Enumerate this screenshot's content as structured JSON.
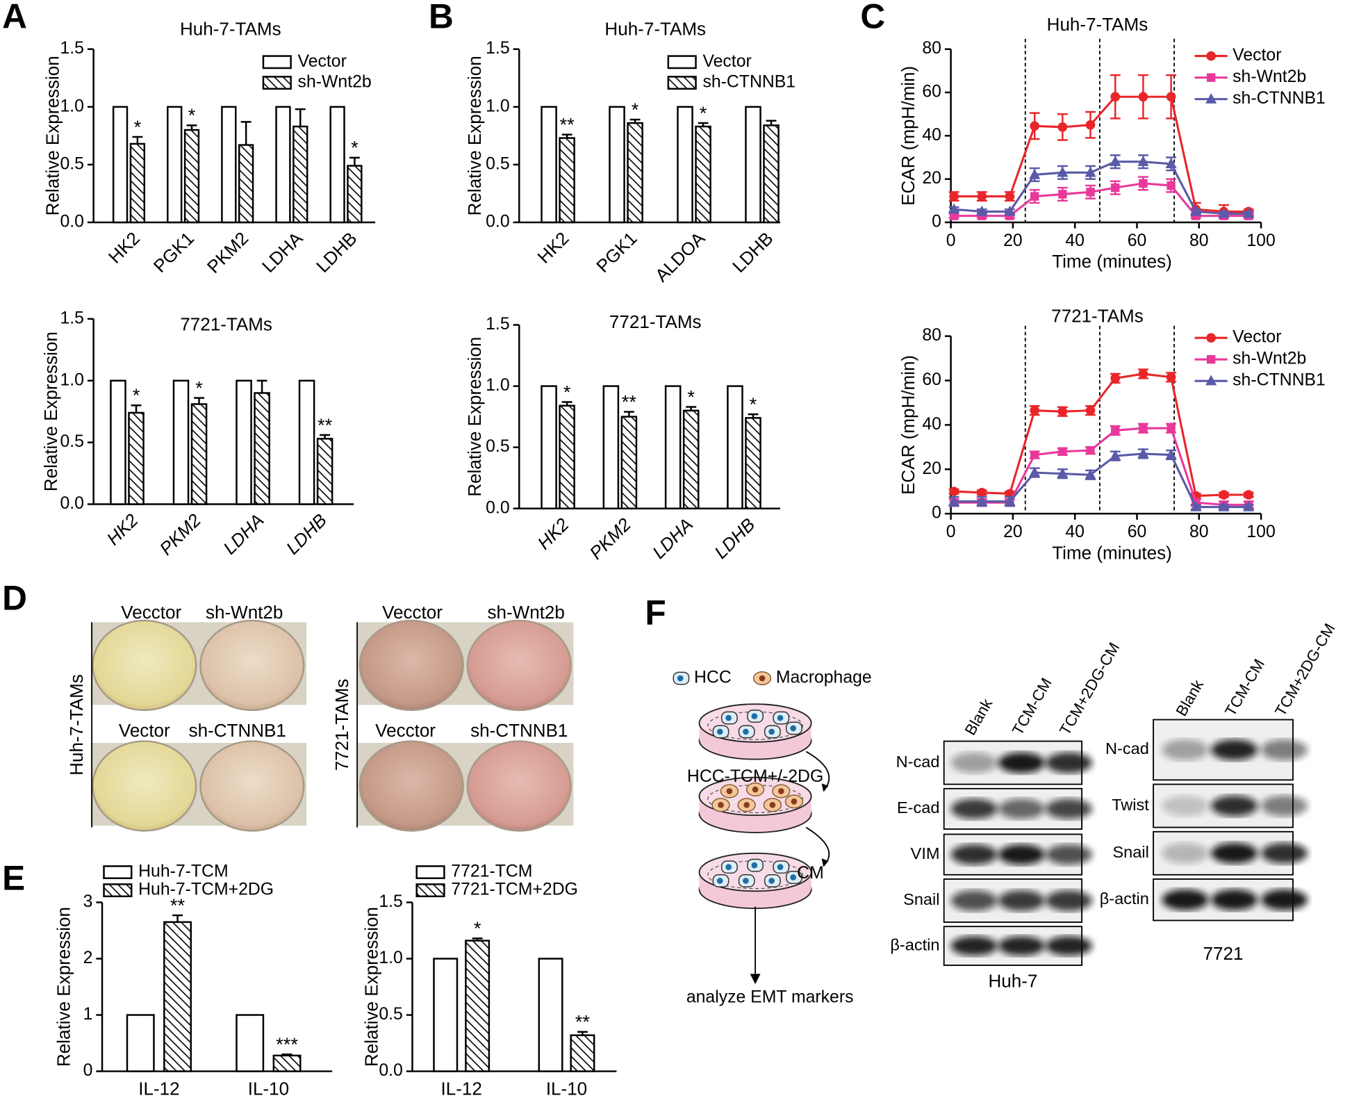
{
  "panel_labels": [
    "A",
    "B",
    "C",
    "D",
    "E",
    "F"
  ],
  "chart_data": [
    {
      "type": "bar",
      "title": "Huh-7-TAMs",
      "ylabel": "Relative Expression",
      "categories": [
        "HK2",
        "PGK1",
        "PKM2",
        "LDHA",
        "LDHB"
      ],
      "category_rotation": -45,
      "category_style": "normal",
      "legend": true,
      "series": [
        {
          "name": "Vector",
          "color": "#ffffff",
          "hatch": false,
          "values": [
            1,
            1,
            1,
            1,
            1
          ]
        },
        {
          "name": "sh-Wnt2b",
          "color": "#ffffff",
          "hatch": true,
          "values": [
            0.68,
            0.8,
            0.67,
            0.83,
            0.49
          ],
          "errors": [
            0.06,
            0.04,
            0.2,
            0.15,
            0.07
          ],
          "significance": [
            "*",
            "*",
            null,
            null,
            "*"
          ]
        }
      ],
      "ylim": [
        0,
        1.5
      ],
      "yticks": [
        {
          "value": 0,
          "label": "0.0"
        },
        {
          "value": 0.5,
          "label": "0.5"
        },
        {
          "value": 1,
          "label": "1.0"
        },
        {
          "value": 1.5,
          "label": "1.5"
        }
      ]
    },
    {
      "type": "bar",
      "title": "7721-TAMs",
      "ylabel": "Relative Expression",
      "categories": [
        "HK2",
        "PKM2",
        "LDHA",
        "LDHB"
      ],
      "category_rotation": -45,
      "category_style": "italic",
      "legend": false,
      "series": [
        {
          "color": "#ffffff",
          "hatch": false,
          "values": [
            1,
            1,
            1,
            1
          ]
        },
        {
          "color": "#ffffff",
          "hatch": true,
          "values": [
            0.74,
            0.81,
            0.9,
            0.53
          ],
          "errors": [
            0.06,
            0.05,
            0.1,
            0.03
          ],
          "significance": [
            "*",
            "*",
            null,
            "**"
          ]
        }
      ],
      "ylim": [
        0,
        1.5
      ],
      "yticks": [
        {
          "value": 0,
          "label": "0.0"
        },
        {
          "value": 0.5,
          "label": "0.5"
        },
        {
          "value": 1,
          "label": "1.0"
        },
        {
          "value": 1.5,
          "label": "1.5"
        }
      ]
    },
    {
      "type": "bar",
      "title": "Huh-7-TAMs",
      "ylabel": "Relative Expression",
      "categories": [
        "HK2",
        "PGK1",
        "ALDOA",
        "LDHB"
      ],
      "category_rotation": -45,
      "category_style": "normal",
      "legend": true,
      "series": [
        {
          "name": "Vector",
          "color": "#ffffff",
          "hatch": false,
          "values": [
            1,
            1,
            1,
            1
          ]
        },
        {
          "name": "sh-CTNNB1",
          "color": "#ffffff",
          "hatch": true,
          "values": [
            0.73,
            0.86,
            0.83,
            0.84
          ],
          "errors": [
            0.03,
            0.03,
            0.03,
            0.04
          ],
          "significance": [
            "**",
            "*",
            "*",
            null
          ]
        }
      ],
      "ylim": [
        0,
        1.5
      ],
      "yticks": [
        {
          "value": 0,
          "label": "0.0"
        },
        {
          "value": 0.5,
          "label": "0.5"
        },
        {
          "value": 1,
          "label": "1.0"
        },
        {
          "value": 1.5,
          "label": "1.5"
        }
      ]
    },
    {
      "type": "bar",
      "title": "7721-TAMs",
      "ylabel": "Relative Expression",
      "categories": [
        "HK2",
        "PKM2",
        "LDHA",
        "LDHB"
      ],
      "category_rotation": -45,
      "category_style": "italic",
      "legend": false,
      "series": [
        {
          "color": "#ffffff",
          "hatch": false,
          "values": [
            1,
            1,
            1,
            1
          ]
        },
        {
          "color": "#ffffff",
          "hatch": true,
          "values": [
            0.84,
            0.75,
            0.8,
            0.74
          ],
          "errors": [
            0.03,
            0.04,
            0.03,
            0.03
          ],
          "significance": [
            "*",
            "**",
            "*",
            "*"
          ]
        }
      ],
      "ylim": [
        0,
        1.5
      ],
      "yticks": [
        {
          "value": 0,
          "label": "0.0"
        },
        {
          "value": 0.5,
          "label": "0.5"
        },
        {
          "value": 1,
          "label": "1.0"
        },
        {
          "value": 1.5,
          "label": "1.5"
        }
      ]
    },
    {
      "type": "line",
      "title": "Huh-7-TAMs",
      "xlabel": "Time (minutes)",
      "ylabel": "ECAR (mpH/min)",
      "legend": true,
      "x": [
        1,
        10,
        19,
        27,
        36,
        45,
        53,
        62,
        71,
        79,
        88,
        96
      ],
      "dashed_lines": [
        24,
        48,
        72
      ],
      "series": [
        {
          "name": "Vector",
          "color": "#e8262a",
          "marker": "circle",
          "values": [
            12,
            12,
            12,
            44.5,
            44,
            45,
            58,
            58,
            58,
            6,
            5,
            5
          ],
          "errors": [
            2,
            2,
            2,
            6,
            6,
            6,
            10,
            10,
            10,
            3,
            3,
            1
          ]
        },
        {
          "name": "sh-Wnt2b",
          "color": "#e8399b",
          "marker": "square",
          "values": [
            3,
            3,
            3,
            12,
            13,
            14,
            16,
            18,
            17,
            3,
            3,
            3
          ],
          "errors": [
            1,
            1,
            1,
            3,
            3,
            3,
            3,
            3,
            3,
            1,
            1,
            1
          ]
        },
        {
          "name": "sh-CTNNB1",
          "color": "#5a5aa8",
          "marker": "triangle",
          "values": [
            6,
            5,
            5,
            22,
            23,
            23,
            28,
            28,
            27,
            5,
            4,
            4
          ],
          "errors": [
            1,
            1,
            1,
            3,
            3,
            3,
            3,
            3,
            3,
            1,
            1,
            1
          ]
        }
      ],
      "xlim": [
        0,
        100
      ],
      "xticks": [
        0,
        20,
        40,
        60,
        80,
        100
      ],
      "ylim": [
        0,
        80
      ],
      "yticks": [
        0,
        20,
        40,
        60,
        80
      ]
    },
    {
      "type": "line",
      "title": "7721-TAMs",
      "xlabel": "Time (minutes)",
      "ylabel": "ECAR (mpH/min)",
      "legend": true,
      "x": [
        1,
        10,
        19,
        27,
        36,
        45,
        53,
        62,
        71,
        79,
        88,
        96
      ],
      "dashed_lines": [
        24,
        48,
        72
      ],
      "series": [
        {
          "name": "Vector",
          "color": "#e8262a",
          "marker": "circle",
          "values": [
            10,
            9.5,
            9,
            46.5,
            46,
            46.5,
            61,
            63,
            61.5,
            8,
            8.5,
            8.5
          ],
          "errors": [
            1,
            1,
            1,
            2,
            2,
            2,
            2,
            2,
            2,
            1,
            1,
            1
          ]
        },
        {
          "name": "sh-Wnt2b",
          "color": "#e8399b",
          "marker": "square",
          "values": [
            5,
            5,
            5,
            26.5,
            28,
            28.5,
            37.5,
            38.5,
            38.5,
            5,
            4,
            4
          ],
          "errors": [
            1.5,
            1.5,
            1.5,
            1.5,
            1.5,
            1.5,
            2,
            2,
            2,
            1.5,
            1.5,
            1.5
          ]
        },
        {
          "name": "sh-CTNNB1",
          "color": "#5a5aa8",
          "marker": "triangle",
          "values": [
            5.5,
            5.5,
            5.5,
            18.5,
            18,
            17.5,
            26,
            27,
            26.5,
            3,
            3,
            3
          ],
          "errors": [
            2,
            2,
            2,
            2,
            2,
            2,
            2,
            2,
            2,
            1,
            1,
            1
          ]
        }
      ],
      "xlim": [
        0,
        100
      ],
      "xticks": [
        0,
        20,
        40,
        60,
        80,
        100
      ],
      "ylim": [
        0,
        80
      ],
      "yticks": [
        0,
        20,
        40,
        60,
        80
      ]
    },
    {
      "type": "bar",
      "ylabel": "Relative Expression",
      "categories": [
        "IL-12",
        "IL-10"
      ],
      "category_rotation": 0,
      "category_style": "normal",
      "legend": true,
      "series": [
        {
          "name": "Huh-7-TCM",
          "color": "#ffffff",
          "hatch": false,
          "values": [
            1,
            1
          ]
        },
        {
          "name": "Huh-7-TCM+2DG",
          "color": "#ffffff",
          "hatch": true,
          "values": [
            2.65,
            0.28
          ],
          "errors": [
            0.12,
            0.02
          ],
          "significance": [
            "**",
            "***"
          ]
        }
      ],
      "ylim": [
        0,
        3
      ],
      "yticks": [
        0,
        1,
        2,
        3
      ]
    },
    {
      "type": "bar",
      "ylabel": "Relative Expression",
      "categories": [
        "IL-12",
        "IL-10"
      ],
      "category_rotation": 0,
      "category_style": "normal",
      "legend": true,
      "series": [
        {
          "name": "7721-TCM",
          "color": "#ffffff",
          "hatch": false,
          "values": [
            1,
            1
          ]
        },
        {
          "name": "7721-TCM+2DG",
          "color": "#ffffff",
          "hatch": true,
          "values": [
            1.16,
            0.32
          ],
          "errors": [
            0.02,
            0.03
          ],
          "significance": [
            "*",
            "**"
          ]
        }
      ],
      "ylim": [
        0,
        1.5
      ],
      "yticks": [
        {
          "value": 0,
          "label": "0.0"
        },
        {
          "value": 0.5,
          "label": "0.5"
        },
        {
          "value": 1,
          "label": "1.0"
        },
        {
          "value": 1.5,
          "label": "1.5"
        }
      ]
    }
  ],
  "photos": [
    {
      "row_label": "Huh-7-TAMs",
      "top": [
        "Vecctor",
        "sh-Wnt2b"
      ],
      "bottom": [
        "Vector",
        "sh-CTNNB1"
      ]
    },
    {
      "row_label": "7721-TAMs",
      "top": [
        "Vecctor",
        "sh-Wnt2b"
      ],
      "bottom": [
        "Vecctor",
        "sh-CTNNB1"
      ]
    }
  ],
  "diagram": {
    "legend": [
      "HCC",
      "Macrophage"
    ],
    "steps": [
      "HCC-TCM+/-2DG",
      "CM"
    ],
    "result": "analyze EMT markers"
  },
  "blots": [
    {
      "cell": "Huh-7",
      "lanes": [
        "Blank",
        "TCM-CM",
        "TCM+2DG-CM"
      ],
      "rows": [
        "N-cad",
        "E-cad",
        "VIM",
        "Snail",
        "β-actin"
      ]
    },
    {
      "cell": "7721",
      "lanes": [
        "Blank",
        "TCM-CM",
        "TCM+2DG-CM"
      ],
      "rows": [
        "N-cad",
        "Twist",
        "Snail",
        "β-actin"
      ]
    }
  ]
}
